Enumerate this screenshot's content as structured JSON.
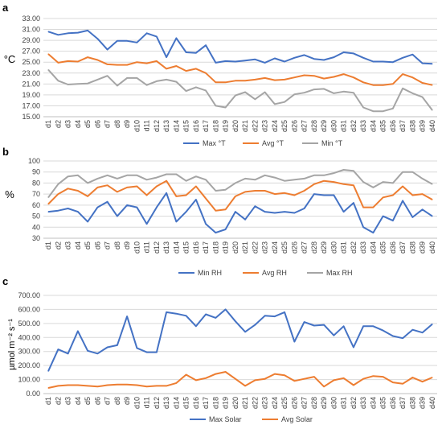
{
  "colors": {
    "blue": "#4472c4",
    "orange": "#ed7d31",
    "gray": "#a5a5a5"
  },
  "days": [
    "d1",
    "d2",
    "d3",
    "d4",
    "d5",
    "d6",
    "d7",
    "d8",
    "d9",
    "d10",
    "d11",
    "d12",
    "d13",
    "d14",
    "d15",
    "d16",
    "d17",
    "d18",
    "d19",
    "d20",
    "d21",
    "d22",
    "d23",
    "d24",
    "d25",
    "d26",
    "d27",
    "d28",
    "d29",
    "d30",
    "d31",
    "d32",
    "d33",
    "d34",
    "d35",
    "d36",
    "d37",
    "d38",
    "d39",
    "d40"
  ],
  "chart_data": [
    {
      "type": "line",
      "panel": "a",
      "ylabel": "°C",
      "ylim": [
        15,
        33
      ],
      "yticks": [
        "15.00",
        "17.00",
        "19.00",
        "21.00",
        "23.00",
        "25.00",
        "27.00",
        "29.00",
        "31.00",
        "33.00"
      ],
      "grid": true,
      "legend": "bottom",
      "series": [
        {
          "name": "Max °T",
          "color": "#4472c4",
          "values": [
            30.6,
            30.0,
            30.3,
            30.4,
            30.8,
            29.3,
            27.3,
            28.9,
            28.9,
            28.6,
            30.3,
            29.7,
            25.9,
            29.4,
            26.8,
            26.7,
            28.1,
            24.9,
            25.2,
            25.1,
            25.3,
            25.5,
            24.9,
            25.7,
            25.1,
            25.8,
            26.3,
            25.6,
            25.4,
            25.9,
            26.8,
            26.6,
            25.8,
            25.1,
            25.1,
            25.0,
            25.8,
            26.4,
            24.8,
            24.7
          ]
        },
        {
          "name": "Avg °T",
          "color": "#ed7d31",
          "values": [
            26.5,
            24.9,
            25.2,
            25.1,
            25.9,
            25.4,
            24.6,
            24.5,
            24.5,
            25.0,
            24.8,
            25.2,
            23.8,
            24.3,
            23.4,
            23.8,
            23.0,
            21.3,
            21.3,
            21.6,
            21.6,
            21.8,
            22.1,
            21.7,
            21.8,
            22.2,
            22.6,
            22.5,
            22.0,
            22.3,
            22.8,
            22.2,
            21.3,
            20.8,
            20.8,
            21.0,
            22.8,
            22.2,
            21.2,
            20.8
          ]
        },
        {
          "name": "Min °T",
          "color": "#a5a5a5",
          "values": [
            23.6,
            21.6,
            20.9,
            21.0,
            21.1,
            21.8,
            22.5,
            20.7,
            22.1,
            22.1,
            20.8,
            21.5,
            21.8,
            21.4,
            19.7,
            20.4,
            19.8,
            17.0,
            16.7,
            18.9,
            19.5,
            18.2,
            19.5,
            17.3,
            17.7,
            19.1,
            19.4,
            20.0,
            20.1,
            19.3,
            19.6,
            19.4,
            16.7,
            16.0,
            16.0,
            16.5,
            20.2,
            19.3,
            18.6,
            16.2
          ]
        }
      ]
    },
    {
      "type": "line",
      "panel": "b",
      "ylabel": "%",
      "ylim": [
        30,
        100
      ],
      "yticks": [
        "30",
        "40",
        "50",
        "60",
        "70",
        "80",
        "90",
        "100"
      ],
      "grid": true,
      "legend": "bottom",
      "series": [
        {
          "name": "Min RH",
          "color": "#4472c4",
          "values": [
            54,
            55,
            57,
            54,
            45,
            58,
            63,
            50,
            60,
            58,
            43,
            58,
            71,
            45,
            54,
            65,
            43,
            35,
            38,
            54,
            47,
            59,
            54,
            53,
            54,
            53,
            57,
            70,
            69,
            69,
            54,
            62,
            40,
            35,
            50,
            46,
            64,
            49,
            56,
            50
          ]
        },
        {
          "name": "Avg RH",
          "color": "#ed7d31",
          "values": [
            61,
            70,
            75,
            73,
            68,
            76,
            78,
            72,
            76,
            77,
            69,
            77,
            82,
            68,
            69,
            77,
            66,
            55,
            56,
            68,
            72,
            73,
            73,
            70,
            71,
            69,
            73,
            79,
            82,
            81,
            79,
            78,
            58,
            58,
            67,
            69,
            77,
            69,
            70,
            65
          ]
        },
        {
          "name": "Max RH",
          "color": "#a5a5a5",
          "values": [
            67,
            79,
            86,
            87,
            80,
            84,
            87,
            84,
            87,
            87,
            83,
            85,
            88,
            88,
            82,
            86,
            83,
            73,
            74,
            80,
            84,
            83,
            87,
            85,
            82,
            83,
            84,
            87,
            87,
            89,
            92,
            91,
            81,
            76,
            81,
            80,
            90,
            90,
            84,
            79
          ]
        }
      ]
    },
    {
      "type": "line",
      "panel": "c",
      "ylabel": "µmol m⁻² s⁻¹",
      "ylim": [
        0,
        700
      ],
      "yticks": [
        "0.00",
        "100.00",
        "200.00",
        "300.00",
        "400.00",
        "500.00",
        "600.00",
        "700.00"
      ],
      "grid": true,
      "legend": "bottom",
      "series": [
        {
          "name": "Max Solar",
          "color": "#4472c4",
          "values": [
            160,
            315,
            285,
            445,
            305,
            285,
            330,
            345,
            550,
            325,
            295,
            295,
            580,
            570,
            555,
            480,
            565,
            540,
            600,
            515,
            440,
            490,
            555,
            550,
            580,
            370,
            510,
            485,
            490,
            415,
            480,
            330,
            480,
            480,
            450,
            410,
            395,
            455,
            435,
            495
          ]
        },
        {
          "name": "Avg Solar",
          "color": "#ed7d31",
          "values": [
            40,
            55,
            60,
            60,
            55,
            50,
            60,
            65,
            65,
            60,
            50,
            55,
            55,
            75,
            135,
            95,
            110,
            140,
            155,
            105,
            55,
            95,
            105,
            140,
            130,
            90,
            105,
            120,
            50,
            95,
            110,
            60,
            105,
            125,
            120,
            80,
            70,
            115,
            85,
            115
          ]
        }
      ]
    }
  ]
}
